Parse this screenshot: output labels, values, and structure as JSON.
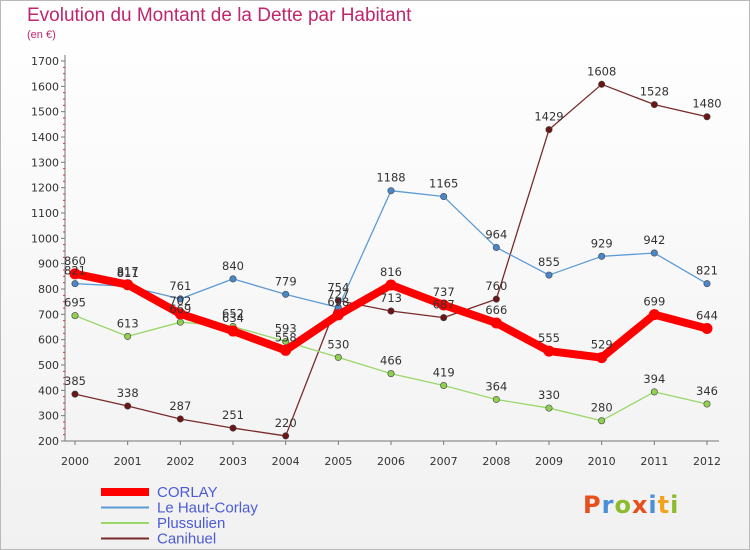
{
  "title": "Evolution du Montant de la Dette par Habitant",
  "subtitle": "(en €)",
  "brand": {
    "letters": [
      "P",
      "r",
      "o",
      "x",
      "i",
      "t",
      "i"
    ],
    "colors": [
      "#e94f1c",
      "#4a8fd8",
      "#8dbb2e",
      "#e94f1c",
      "#4a8fd8",
      "#f2a21c",
      "#8dbb2e"
    ]
  },
  "chart_data": {
    "type": "line",
    "title": "Evolution du Montant de la Dette par Habitant",
    "ylabel": "(en €)",
    "ylim": [
      200,
      1700
    ],
    "yticks": [
      200,
      300,
      400,
      500,
      600,
      700,
      800,
      900,
      1000,
      1100,
      1200,
      1300,
      1400,
      1500,
      1600,
      1700
    ],
    "x": [
      "2000",
      "2001",
      "2002",
      "2003",
      "2004",
      "2005",
      "2006",
      "2007",
      "2008",
      "2009",
      "2010",
      "2011",
      "2012"
    ],
    "grid": false,
    "legend": "bottom-left",
    "series": [
      {
        "name": "CORLAY",
        "color": "#ff0000",
        "values": [
          860,
          817,
          702,
          634,
          558,
          698,
          816,
          737,
          666,
          555,
          529,
          699,
          644
        ]
      },
      {
        "name": "Le Haut-Corlay",
        "color": "#5c9bd5",
        "values": [
          821,
          811,
          761,
          840,
          779,
          727,
          1188,
          1165,
          964,
          855,
          929,
          942,
          821
        ]
      },
      {
        "name": "Plussulien",
        "color": "#9ad76a",
        "values": [
          695,
          613,
          669,
          652,
          593,
          530,
          466,
          419,
          364,
          330,
          280,
          394,
          346
        ]
      },
      {
        "name": "Canihuel",
        "color": "#7a2a2a",
        "values": [
          385,
          338,
          287,
          251,
          220,
          754,
          713,
          687,
          760,
          1429,
          1608,
          1528,
          1480
        ]
      }
    ]
  }
}
